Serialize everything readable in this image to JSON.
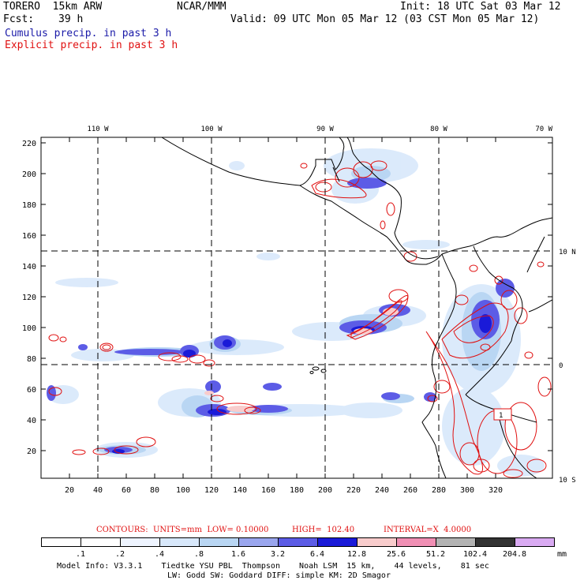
{
  "header": {
    "model": "TORERO  15km ARW",
    "org": "NCAR/MMM",
    "init": "Init: 18 UTC Sat 03 Mar 12",
    "fcst_label": "Fcst:",
    "fcst_value": "39 h",
    "valid": "Valid: 09 UTC Mon 05 Mar 12 (03 CST Mon 05 Mar 12)",
    "field1": "Cumulus precip. in past 3 h",
    "field2": "Explicit precip. in past 3 h",
    "field1_color": "#1a1aa8",
    "field2_color": "#e01010"
  },
  "axes": {
    "lon_labels": [
      "110 W",
      "100 W",
      "90 W",
      "80 W",
      "70 W"
    ],
    "lat_labels": [
      "10 N",
      "0",
      "10 S"
    ],
    "y_ticks": [
      "220",
      "200",
      "180",
      "160",
      "140",
      "120",
      "100",
      "80",
      "60",
      "40",
      "20"
    ],
    "x_ticks": [
      "20",
      "40",
      "60",
      "80",
      "100",
      "120",
      "140",
      "160",
      "180",
      "200",
      "220",
      "240",
      "260",
      "280",
      "300",
      "320"
    ]
  },
  "map_labels": {
    "contour_label": "1"
  },
  "contours": {
    "units": "CONTOURS:  UNITS=mm  LOW= 0.10000",
    "high": "HIGH=  102.40",
    "interval": "INTERVAL=X  4.0000"
  },
  "legend": {
    "labels": [
      ".1",
      ".2",
      ".4",
      ".8",
      "1.6",
      "3.2",
      "6.4",
      "12.8",
      "25.6",
      "51.2",
      "102.4",
      "204.8"
    ],
    "unit": "mm",
    "colors": [
      "#ffffff",
      "#ffffff",
      "#eef4ff",
      "#d8e8fb",
      "#b9d6f3",
      "#9aa6ee",
      "#5c5ce6",
      "#1a1ad8",
      "#f8cccc",
      "#f08fb4",
      "#b3b3b3",
      "#333333",
      "#d9aaf2"
    ]
  },
  "footer": {
    "line1": "Model Info: V3.3.1    Tiedtke YSU PBL  Thompson    Noah LSM  15 km,    44 levels,    81 sec",
    "line2": "LW: Godd SW: Goddard DIFF: simple KM: 2D Smagor"
  }
}
